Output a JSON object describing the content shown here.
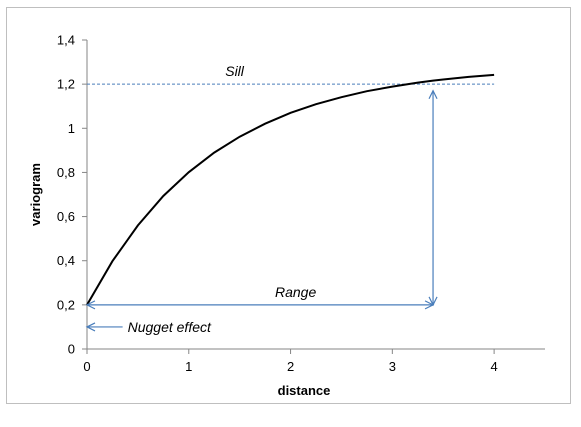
{
  "chart_data": {
    "type": "line",
    "xlabel": "distance",
    "ylabel": "variogram",
    "xlim": [
      0,
      4.5
    ],
    "ylim": [
      0,
      1.4
    ],
    "x_ticks": [
      0,
      1,
      2,
      3,
      4
    ],
    "x_tick_labels": [
      "0",
      "1",
      "2",
      "3",
      "4"
    ],
    "y_ticks": [
      0,
      0.2,
      0.4,
      0.6,
      0.8,
      1.0,
      1.2,
      1.4
    ],
    "y_tick_labels": [
      "0",
      "0,2",
      "0,4",
      "0,6",
      "0,8",
      "1",
      "1,2",
      "1,4"
    ],
    "grid": false,
    "series": [
      {
        "x": [
          0,
          0.25,
          0.5,
          0.75,
          1.0,
          1.25,
          1.5,
          1.75,
          2.0,
          2.25,
          2.5,
          2.75,
          3.0,
          3.25,
          3.4,
          3.5,
          3.75,
          4.0
        ],
        "y": [
          0.2,
          0.398,
          0.56,
          0.693,
          0.801,
          0.89,
          0.962,
          1.021,
          1.07,
          1.109,
          1.141,
          1.168,
          1.189,
          1.207,
          1.216,
          1.221,
          1.233,
          1.242
        ],
        "color": "#000000"
      }
    ],
    "annotations": {
      "sill": {
        "label": "Sill",
        "y": 1.2,
        "x_range": [
          0,
          4
        ],
        "color": "#4a7ebb"
      },
      "range": {
        "label": "Range",
        "y": 0.2,
        "x_range": [
          0,
          3.4
        ],
        "color": "#4a7ebb"
      },
      "range_vertical": {
        "x": 3.4,
        "y_range": [
          0.2,
          1.17
        ],
        "color": "#4a7ebb"
      },
      "nugget": {
        "label": "Nugget effect",
        "y": 0.1,
        "x_range": [
          0,
          0.35
        ],
        "color": "#4a7ebb"
      }
    }
  }
}
